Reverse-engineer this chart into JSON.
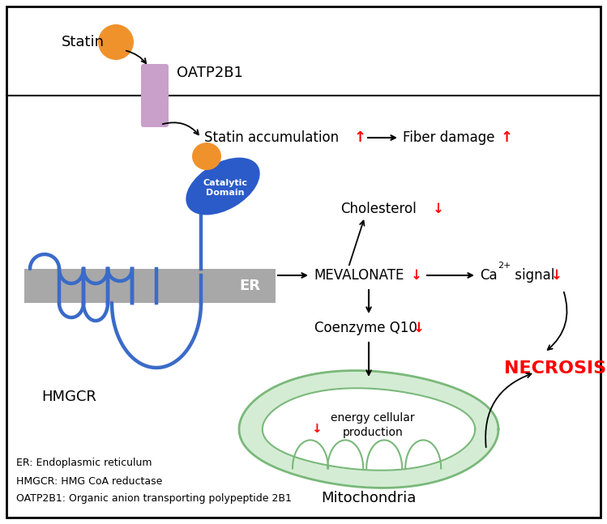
{
  "bg_color": "#ffffff",
  "statin_color": "#f0922b",
  "oatp_color": "#c9a0c9",
  "er_color": "#a8a8a8",
  "hmgcr_color": "#3a6bc8",
  "mito_outer": "#7ab87a",
  "mito_inner": "#d4ecd4",
  "red_color": "#ff0000",
  "necrosis_color": "#ff0000",
  "text_color": "#000000",
  "legend_texts": [
    "ER: Endoplasmic reticulum",
    "HMGCR: HMG CoA reductase",
    "OATP2B1: Organic anion transporting polypeptide 2B1"
  ]
}
